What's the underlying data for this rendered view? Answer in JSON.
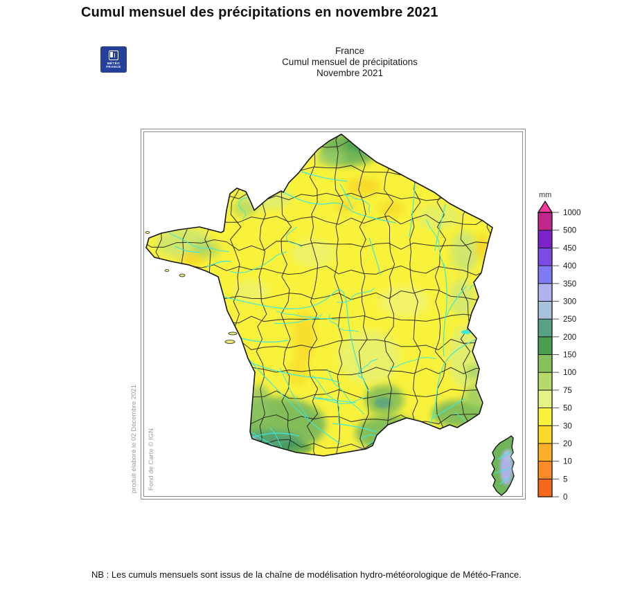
{
  "page": {
    "title": "Cumul mensuel des précipitations en novembre 2021",
    "note": "NB : Les cumuls mensuels sont issus de la chaîne de modélisation hydro-météorologique de Météo-France."
  },
  "logo": {
    "line1": "MÉTÉO",
    "line2": "FRANCE"
  },
  "header": {
    "line1": "France",
    "line2": "Cumul mensuel de précipitations",
    "line3": "Novembre 2021"
  },
  "figure": {
    "produced_caption": "produit élaboré le 02 Décembre 2021",
    "basemap_caption": "Fond de Carte © IGN"
  },
  "map": {
    "country": "France",
    "base_color": "#F9F23C",
    "river_color": "#3BE8DC",
    "boundary_color": "#26261C",
    "frame_color": "#8A8A8A"
  },
  "legend": {
    "unit": "mm",
    "overflow_arrow_color": "#F4379B",
    "stops": [
      {
        "value": 0,
        "color": "#F8681C"
      },
      {
        "value": 5,
        "color": "#FA8C28"
      },
      {
        "value": 10,
        "color": "#FBAE28"
      },
      {
        "value": 20,
        "color": "#FBD92B"
      },
      {
        "value": 30,
        "color": "#F9F23C"
      },
      {
        "value": 50,
        "color": "#E5F285"
      },
      {
        "value": 75,
        "color": "#B5DA6B"
      },
      {
        "value": 100,
        "color": "#86BF5E"
      },
      {
        "value": 150,
        "color": "#48A04F"
      },
      {
        "value": 200,
        "color": "#57A284"
      },
      {
        "value": 250,
        "color": "#A9C2DC"
      },
      {
        "value": 300,
        "color": "#B2B2F0"
      },
      {
        "value": 350,
        "color": "#7E7BF2"
      },
      {
        "value": 400,
        "color": "#7B4BE4"
      },
      {
        "value": 450,
        "color": "#7C22C8"
      },
      {
        "value": 500,
        "color": "#C0268C"
      },
      {
        "value": 1000,
        "color": null
      }
    ]
  }
}
